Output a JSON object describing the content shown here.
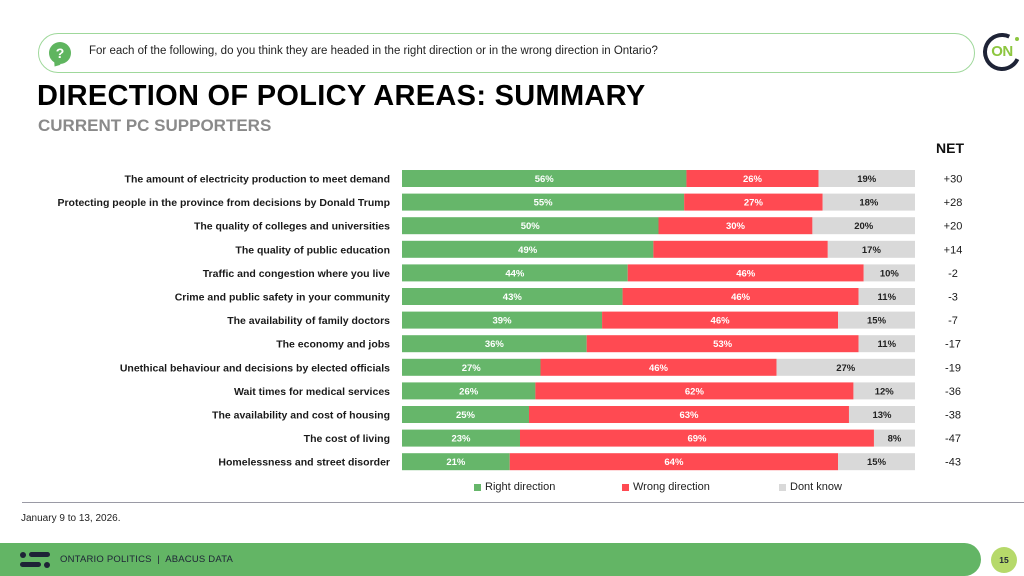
{
  "question": {
    "icon": "question-bubble-icon",
    "text": "For each of the following, do you think they are headed in the right direction or in the wrong direction in Ontario?"
  },
  "brand": {
    "logo_text": "ON",
    "logo_icon": "ontario-on-logo"
  },
  "header": {
    "title": "DIRECTION OF POLICY AREAS: SUMMARY",
    "subtitle": "CURRENT PC SUPPORTERS",
    "net_label": "NET"
  },
  "colors": {
    "right": "#66b66a",
    "wrong": "#ff4a52",
    "dontknow": "#d9d9d9"
  },
  "chart_data": {
    "type": "bar",
    "orientation": "horizontal-stacked-100",
    "title": "DIRECTION OF POLICY AREAS: SUMMARY",
    "subtitle": "CURRENT PC SUPPORTERS",
    "xlabel": "",
    "ylabel": "",
    "xlim": [
      0,
      100
    ],
    "grid": false,
    "legend_position": "bottom",
    "categories": [
      "The amount of electricity production to meet demand",
      "Protecting people in the province from decisions by Donald Trump",
      "The quality of colleges and universities",
      "The quality of public education",
      "Traffic and congestion where you live",
      "Crime and public safety in your community",
      "The availability of family doctors",
      "The economy and jobs",
      "Unethical behaviour and decisions by elected officials",
      "Wait times for medical services",
      "The availability and cost of housing",
      "The cost of living",
      "Homelessness and street disorder"
    ],
    "series": [
      {
        "name": "Right direction",
        "key": "right",
        "values": [
          56,
          55,
          50,
          49,
          44,
          43,
          39,
          36,
          27,
          26,
          25,
          23,
          21
        ],
        "labels_shown": [
          true,
          true,
          true,
          true,
          true,
          true,
          true,
          true,
          true,
          true,
          true,
          true,
          true
        ]
      },
      {
        "name": "Wrong direction",
        "key": "wrong",
        "values": [
          26,
          27,
          30,
          34,
          46,
          46,
          46,
          53,
          46,
          62,
          63,
          69,
          64
        ],
        "labels_shown": [
          true,
          true,
          true,
          false,
          true,
          true,
          true,
          true,
          true,
          true,
          true,
          true,
          true
        ]
      },
      {
        "name": "Dont know",
        "key": "dontknow",
        "values": [
          19,
          18,
          20,
          17,
          10,
          11,
          15,
          11,
          27,
          12,
          13,
          8,
          15
        ],
        "labels_shown": [
          true,
          true,
          true,
          true,
          true,
          true,
          true,
          true,
          true,
          true,
          true,
          true,
          true
        ]
      }
    ],
    "net_column_title": "NET",
    "net": [
      "+30",
      "+28",
      "+20",
      "+14",
      "-2",
      "-3",
      "-7",
      "-17",
      "-19",
      "-36",
      "-38",
      "-47",
      "-43"
    ]
  },
  "legend": [
    {
      "label": "Right direction",
      "key": "right"
    },
    {
      "label": "Wrong direction",
      "key": "wrong"
    },
    {
      "label": "Dont know",
      "key": "dontknow"
    }
  ],
  "footer": {
    "date_note": "January 9 to 13, 2026.",
    "brand_text": "ONTARIO POLITICS  |  ABACUS DATA",
    "page_number": "15"
  }
}
